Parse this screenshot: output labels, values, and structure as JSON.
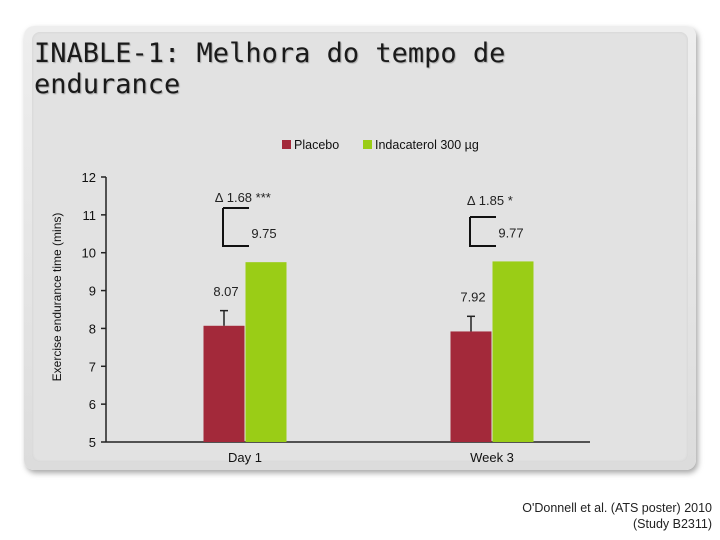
{
  "slide": {
    "title_line1": "INABLE-1: Melhora do tempo de",
    "title_line2": "endurance",
    "citation_line1": "O'Donnell et al. (ATS poster) 2010",
    "citation_line2": "(Study B2311)"
  },
  "colors": {
    "placebo": "#a3293a",
    "indacaterol": "#9acd16",
    "error_bar": "#222222",
    "axis": "#222222"
  },
  "chart_data": {
    "type": "bar",
    "title": "",
    "xlabel": "",
    "ylabel": "Exercise endurance time (mins)",
    "ylim": [
      5,
      12
    ],
    "yticks": [
      5,
      6,
      7,
      8,
      9,
      10,
      11,
      12
    ],
    "categories": [
      "Day 1",
      "Week 3"
    ],
    "series": [
      {
        "name": "Placebo",
        "values": [
          8.07,
          7.92
        ],
        "error": [
          0.4,
          0.4
        ],
        "labels": [
          "8.07",
          "7.92"
        ]
      },
      {
        "name": "Indacaterol 300 µg",
        "values": [
          9.75,
          9.77
        ],
        "error": [
          0,
          0
        ],
        "labels": [
          "9.75",
          "9.77"
        ]
      }
    ],
    "annotations": [
      "∆ 1.68 ***",
      "∆ 1.85 *"
    ],
    "legend_position": "top",
    "grid": false
  }
}
